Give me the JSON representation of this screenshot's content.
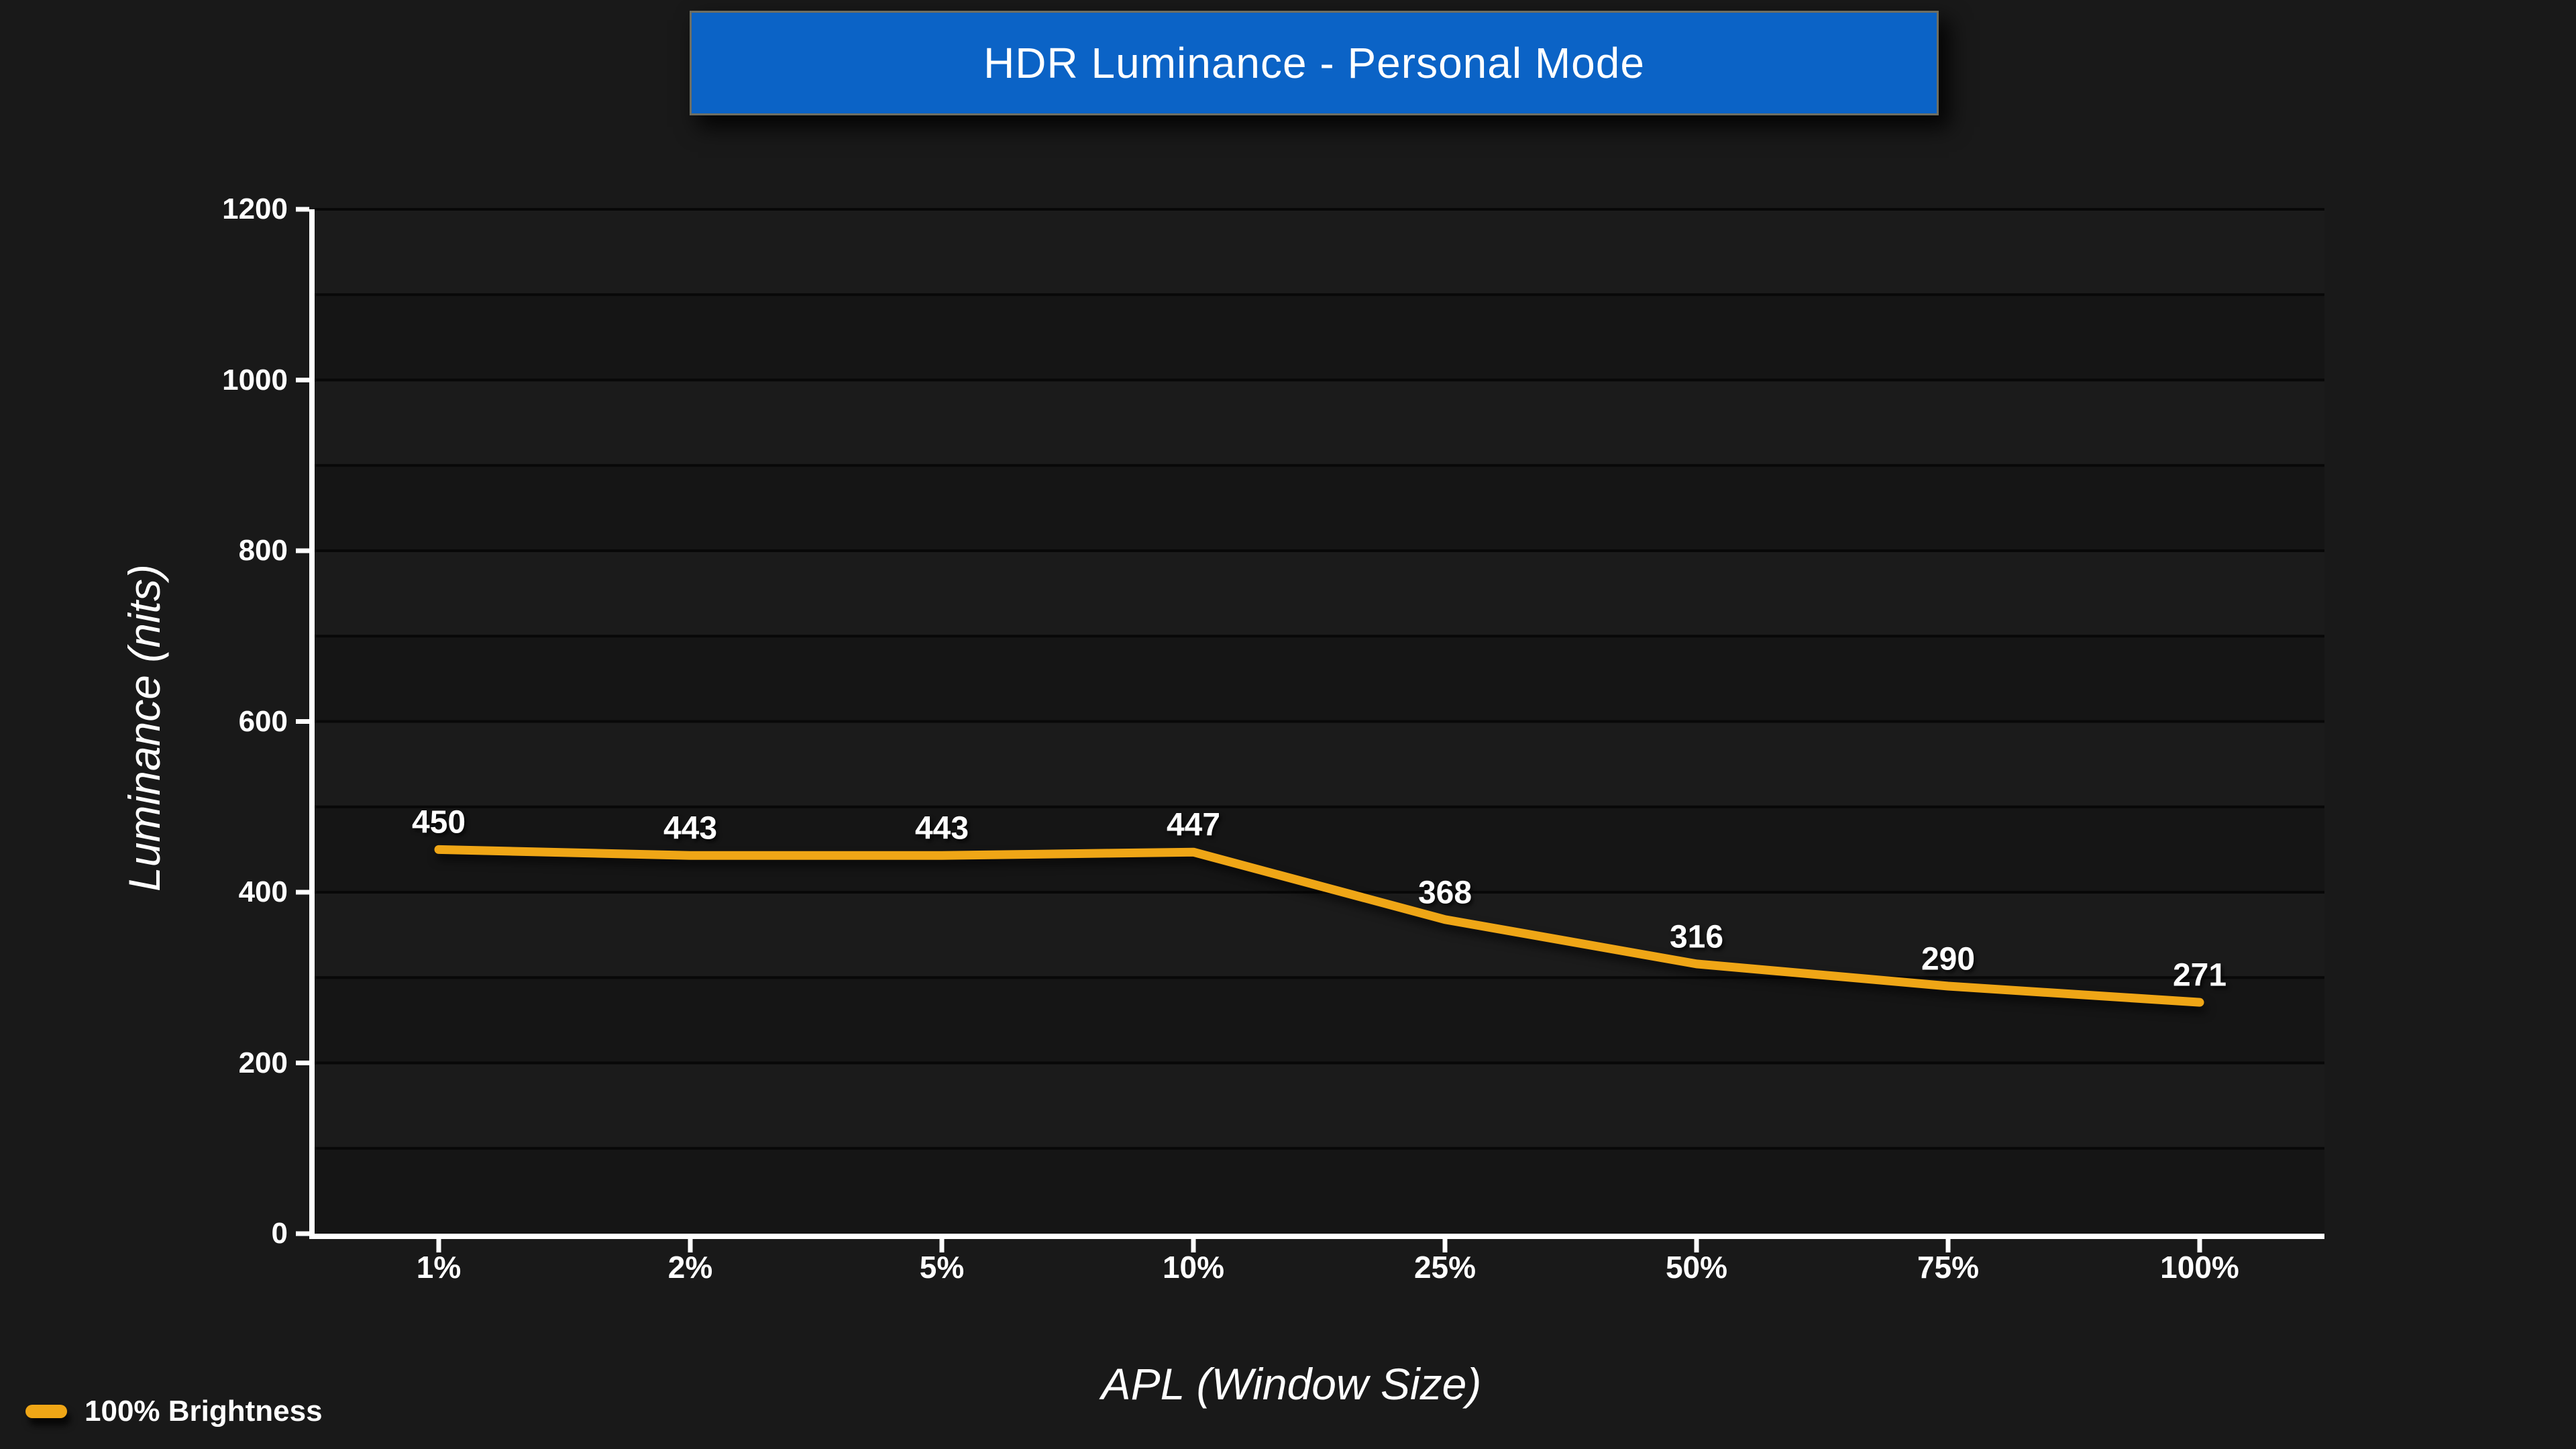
{
  "chart_data": {
    "type": "line",
    "title": "HDR Luminance - Personal Mode",
    "categories": [
      "1%",
      "2%",
      "5%",
      "10%",
      "25%",
      "50%",
      "75%",
      "100%"
    ],
    "series": [
      {
        "name": "100% Brightness",
        "values": [
          450,
          443,
          443,
          447,
          368,
          316,
          290,
          271
        ]
      }
    ],
    "xlabel": "APL (Window Size)",
    "ylabel": "Luminance (nits)",
    "ylim": [
      0,
      1200
    ],
    "yticks": [
      0,
      200,
      400,
      600,
      800,
      1000,
      1200
    ],
    "gridline_interval": 100,
    "grid": "horizontal-only",
    "data_labels": true,
    "legend_position": "bottom-left",
    "colors": {
      "background": "#191919",
      "band_light": "#1b1b1b",
      "band_dark": "#151515",
      "gridline": "#080808",
      "axis": "#ffffff",
      "text": "#ffffff",
      "line_orange": "#efa616",
      "banner_blue": "#0b63c6",
      "banner_border": "#6e6e62"
    }
  }
}
